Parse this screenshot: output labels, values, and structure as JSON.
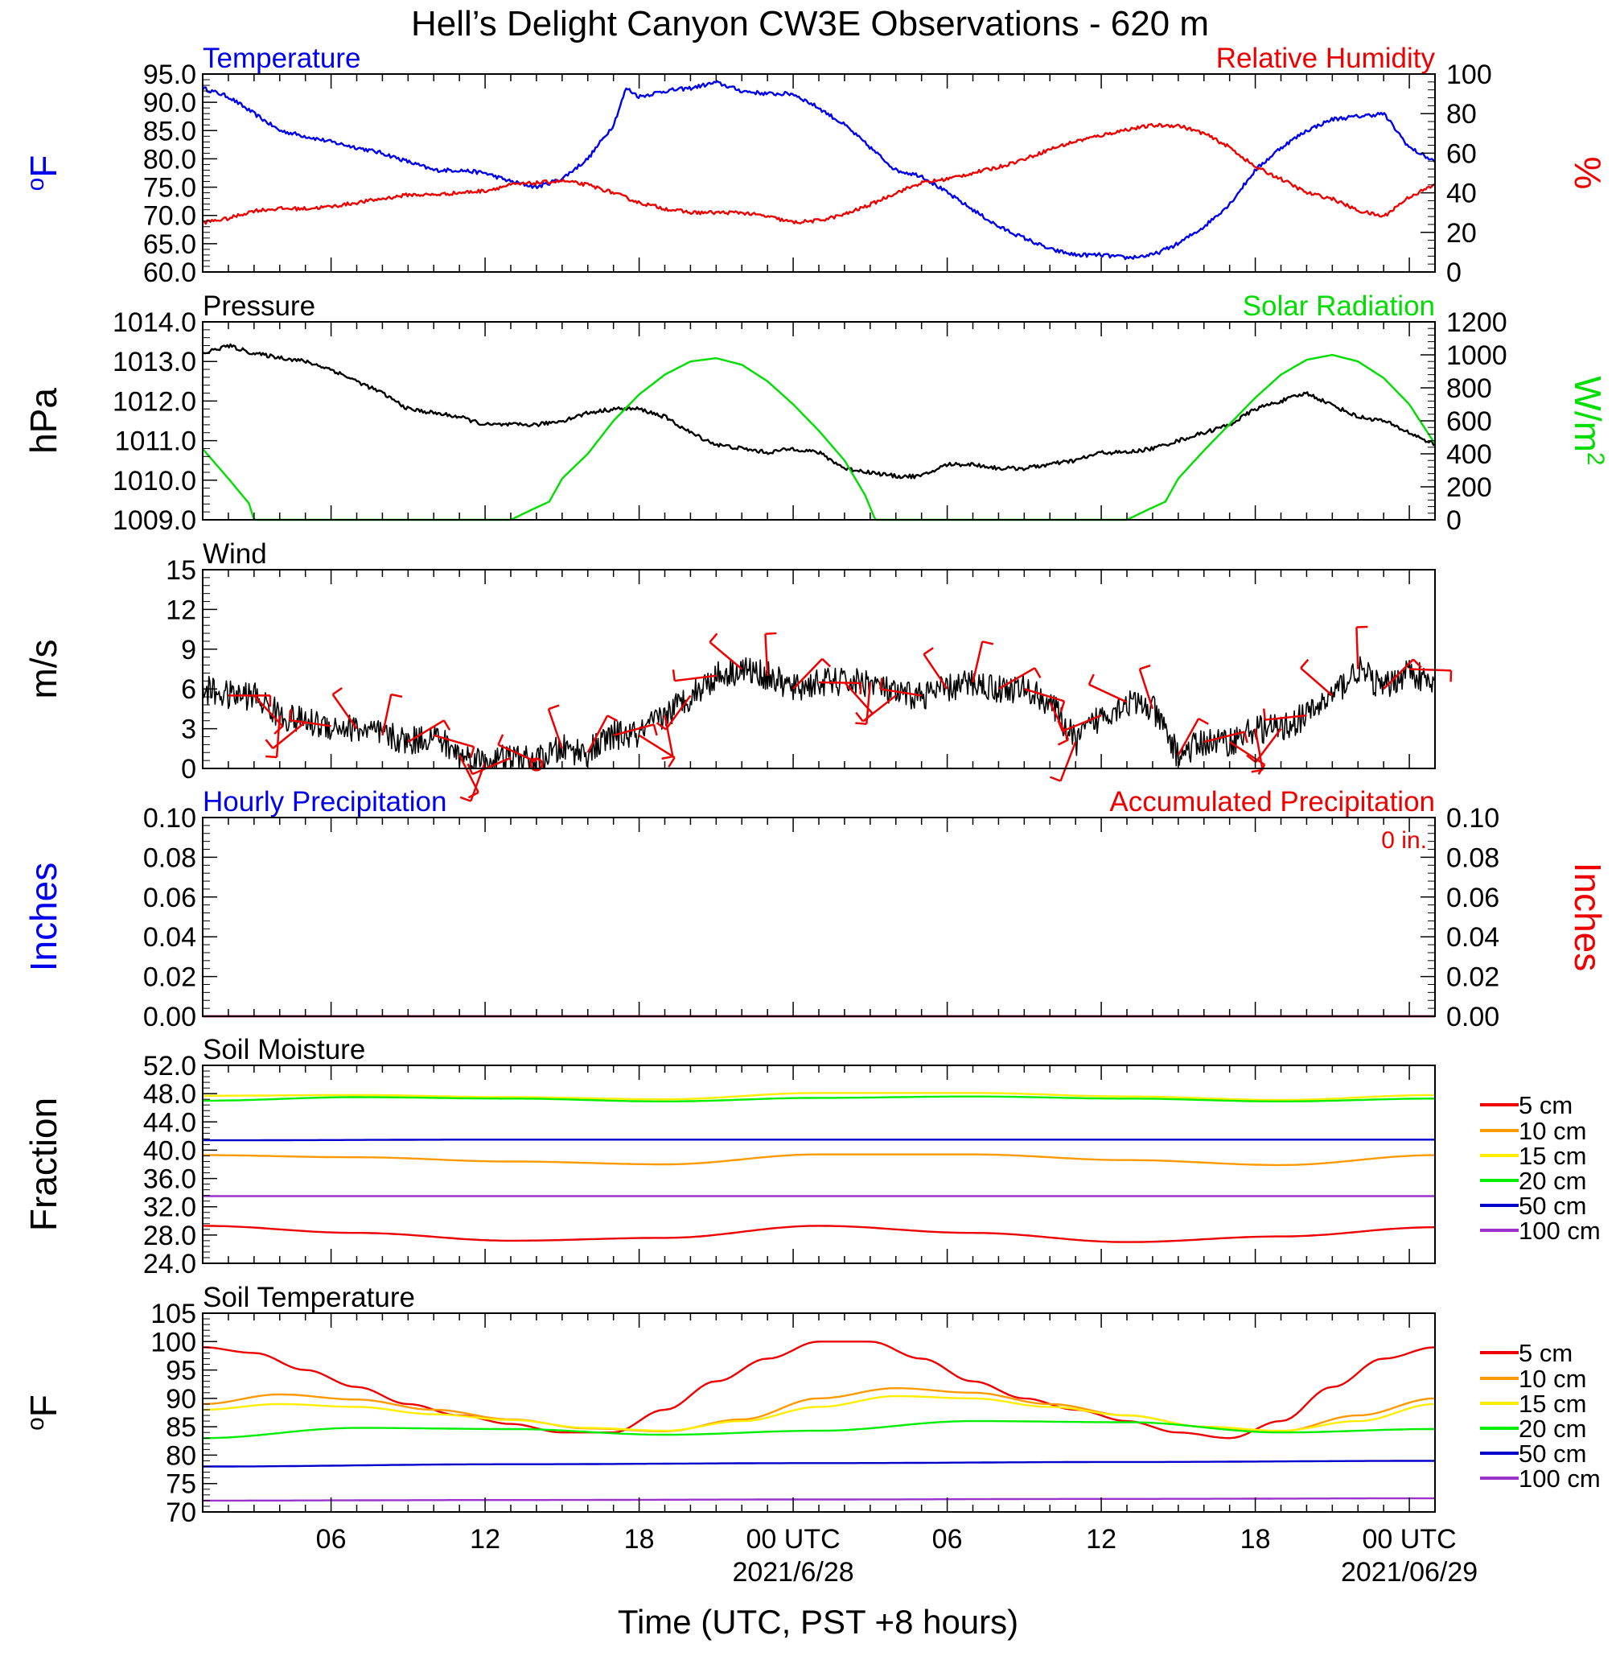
{
  "title": "Hell’s Delight Canyon CW3E Observations - 620 m",
  "x_axis": {
    "label": "Time (UTC, PST +8 hours)",
    "tick_labels": [
      "06",
      "12",
      "18",
      "00 UTC",
      "06",
      "12",
      "18",
      "00 UTC"
    ],
    "tick_hours": [
      6,
      12,
      18,
      24,
      30,
      36,
      42,
      48
    ],
    "date_labels": [
      "2021/6/28",
      "2021/06/29"
    ],
    "date_hours": [
      24,
      48
    ],
    "range_hours": [
      1,
      49
    ]
  },
  "colors": {
    "temperature": "#0000ee",
    "humidity": "#ee0000",
    "pressure": "#000000",
    "solar": "#00dd00",
    "wind": "#000000",
    "barbs": "#ee0000",
    "precip_hourly": "#0000ee",
    "precip_accum": "#ee0000",
    "depth_5cm": "#ee0000",
    "depth_10cm": "#ff9900",
    "depth_15cm": "#ffee00",
    "depth_20cm": "#00ee00",
    "depth_50cm": "#0000cc",
    "depth_100cm": "#9933cc"
  },
  "chart_data": [
    {
      "type": "line",
      "panel_title_left": "Temperature",
      "panel_title_right": "Relative Humidity",
      "left_axis": {
        "label": "oF",
        "ylim": [
          60,
          95
        ],
        "ticks": [
          "95.0",
          "90.0",
          "85.0",
          "80.0",
          "75.0",
          "70.0",
          "65.0",
          "60.0"
        ]
      },
      "right_axis": {
        "label": "%",
        "ylim": [
          0,
          100
        ],
        "ticks": [
          "100",
          "80",
          "60",
          "40",
          "20",
          "0"
        ]
      },
      "series": [
        {
          "name": "Temperature",
          "axis": "left",
          "color": "#0000ee",
          "x": [
            1,
            2,
            3,
            4,
            5,
            6,
            7,
            8,
            9,
            10,
            11,
            12,
            13,
            14,
            15,
            16,
            17,
            17.5,
            18,
            19,
            20,
            21,
            22,
            23,
            24,
            25,
            26,
            27,
            28,
            29,
            30,
            31,
            32,
            33,
            34,
            35,
            36,
            37,
            38,
            39,
            40,
            41,
            42,
            43,
            44,
            45,
            46,
            47,
            48,
            49
          ],
          "y": [
            92.5,
            91,
            88,
            85,
            84,
            83,
            82,
            81,
            79.5,
            78,
            78,
            77.5,
            76,
            75,
            76.5,
            80,
            86,
            92.5,
            91,
            92,
            92.5,
            93.5,
            92,
            91.5,
            91.5,
            89,
            86,
            82,
            78,
            77,
            74,
            71,
            68,
            66,
            64,
            63,
            63,
            62.5,
            63,
            65,
            68,
            72,
            78,
            82,
            85,
            87,
            87.5,
            88,
            82,
            79.5
          ]
        },
        {
          "name": "Relative Humidity",
          "axis": "right",
          "color": "#ee0000",
          "x": [
            1,
            2,
            3,
            4,
            5,
            6,
            7,
            8,
            9,
            10,
            11,
            12,
            13,
            14,
            15,
            16,
            17,
            18,
            19,
            20,
            21,
            22,
            23,
            24,
            25,
            26,
            27,
            28,
            29,
            30,
            31,
            32,
            33,
            34,
            35,
            36,
            37,
            38,
            39,
            40,
            41,
            42,
            43,
            44,
            45,
            46,
            47,
            48,
            49
          ],
          "y": [
            25,
            27,
            31,
            32,
            32,
            33,
            35,
            37,
            39,
            39,
            40,
            41,
            44,
            45,
            46,
            44,
            40,
            35,
            32,
            30,
            30,
            30,
            28,
            25,
            26,
            29,
            34,
            40,
            45,
            47,
            50,
            53,
            57,
            62,
            66,
            69,
            72,
            74,
            74,
            70,
            63,
            53,
            47,
            40,
            37,
            31,
            28,
            38,
            44
          ]
        }
      ]
    },
    {
      "type": "line",
      "panel_title_left": "Pressure",
      "panel_title_right": "Solar Radiation",
      "left_axis": {
        "label": "hPa",
        "ylim": [
          1009,
          1014
        ],
        "ticks": [
          "1014.0",
          "1013.0",
          "1012.0",
          "1011.0",
          "1010.0",
          "1009.0"
        ]
      },
      "right_axis": {
        "label": "W/m2",
        "ylim": [
          0,
          1200
        ],
        "ticks": [
          "1200",
          "1000",
          "800",
          "600",
          "400",
          "200",
          "0"
        ]
      },
      "series": [
        {
          "name": "Pressure",
          "axis": "left",
          "color": "#000000",
          "x": [
            1,
            2,
            3,
            4,
            5,
            6,
            7,
            8,
            9,
            10,
            11,
            12,
            13,
            14,
            15,
            16,
            17,
            18,
            19,
            20,
            21,
            22,
            23,
            24,
            25,
            26,
            27,
            28,
            29,
            30,
            31,
            32,
            33,
            34,
            35,
            36,
            37,
            38,
            39,
            40,
            41,
            42,
            43,
            44,
            45,
            46,
            47,
            48,
            49
          ],
          "y": [
            1013.2,
            1013.4,
            1013.2,
            1013.1,
            1013.0,
            1012.8,
            1012.5,
            1012.2,
            1011.8,
            1011.7,
            1011.6,
            1011.4,
            1011.4,
            1011.4,
            1011.5,
            1011.7,
            1011.8,
            1011.8,
            1011.6,
            1011.2,
            1010.9,
            1010.8,
            1010.7,
            1010.8,
            1010.7,
            1010.3,
            1010.2,
            1010.1,
            1010.1,
            1010.4,
            1010.4,
            1010.3,
            1010.3,
            1010.4,
            1010.5,
            1010.7,
            1010.7,
            1010.8,
            1011.0,
            1011.2,
            1011.4,
            1011.8,
            1012.0,
            1012.2,
            1011.9,
            1011.6,
            1011.5,
            1011.2,
            1010.9
          ]
        },
        {
          "name": "Solar Radiation",
          "axis": "right",
          "color": "#00dd00",
          "x": [
            1,
            2,
            2.8,
            3,
            4,
            8,
            12,
            13,
            13.8,
            14.5,
            15,
            16,
            17,
            18,
            19,
            20,
            21,
            22,
            23,
            24,
            25,
            26,
            26.8,
            27.2,
            28,
            30,
            33,
            36,
            37,
            37.8,
            38.5,
            39,
            40,
            41,
            42,
            43,
            44,
            45,
            46,
            47,
            48,
            49
          ],
          "y": [
            430,
            250,
            100,
            0,
            0,
            0,
            0,
            0,
            60,
            110,
            250,
            400,
            600,
            760,
            880,
            960,
            980,
            940,
            840,
            700,
            540,
            360,
            150,
            0,
            0,
            0,
            0,
            0,
            0,
            60,
            110,
            250,
            420,
            580,
            740,
            880,
            970,
            1000,
            960,
            860,
            700,
            460
          ]
        }
      ]
    },
    {
      "type": "line",
      "panel_title_left": "Wind",
      "left_axis": {
        "label": "m/s",
        "ylim": [
          0,
          15
        ],
        "ticks": [
          "15",
          "12",
          "9",
          "6",
          "3",
          "0"
        ]
      },
      "series": [
        {
          "name": "Wind",
          "axis": "left",
          "color": "#000000",
          "x": [
            1,
            2,
            3,
            4,
            5,
            6,
            7,
            8,
            9,
            10,
            11,
            12,
            13,
            14,
            15,
            16,
            17,
            18,
            19,
            20,
            21,
            22,
            23,
            24,
            25,
            26,
            27,
            28,
            29,
            30,
            31,
            32,
            33,
            34,
            35,
            36,
            37,
            38,
            39,
            40,
            41,
            42,
            43,
            44,
            45,
            46,
            47,
            48,
            49
          ],
          "y": [
            6,
            5.5,
            5.5,
            4,
            3.5,
            3.2,
            3,
            2.5,
            2,
            2.5,
            1,
            0.5,
            0.8,
            0.5,
            1.5,
            1.2,
            2.5,
            2.5,
            4,
            5.5,
            7,
            7.5,
            7,
            6,
            6.5,
            6.5,
            6.5,
            5.5,
            5.5,
            6,
            6.5,
            6,
            6,
            5,
            2,
            4,
            5,
            4.5,
            1,
            2,
            2,
            3,
            3,
            4,
            5.5,
            7.5,
            6,
            7.5,
            6
          ]
        }
      ],
      "barbs_hours": [
        2,
        3,
        4,
        5,
        6,
        7,
        8,
        9,
        10,
        11,
        12,
        13,
        14,
        15,
        16,
        17,
        18,
        19,
        20,
        21,
        22,
        23,
        24,
        25,
        26,
        27,
        28,
        29,
        30,
        31,
        32,
        33,
        34,
        35,
        36,
        37,
        38,
        39,
        40,
        41,
        42,
        43,
        44,
        45,
        46,
        47,
        48
      ],
      "calm_marker_hour": 14
    },
    {
      "type": "line",
      "panel_title_left": "Hourly Precipitation",
      "panel_title_right": "Accumulated Precipitation",
      "annotation": "0 in.",
      "left_axis": {
        "label": "Inches",
        "ylim": [
          0,
          0.1
        ],
        "ticks": [
          "0.10",
          "0.08",
          "0.06",
          "0.04",
          "0.02",
          "0.00"
        ]
      },
      "right_axis": {
        "label": "Inches",
        "ylim": [
          0,
          0.1
        ],
        "ticks": [
          "0.10",
          "0.08",
          "0.06",
          "0.04",
          "0.02",
          "0.00"
        ]
      },
      "series": [
        {
          "name": "Hourly Precipitation",
          "axis": "left",
          "color": "#0000ee",
          "x": [
            1,
            49
          ],
          "y": [
            0,
            0
          ]
        },
        {
          "name": "Accumulated Precipitation",
          "axis": "right",
          "color": "#ee0000",
          "x": [
            1,
            49
          ],
          "y": [
            0,
            0
          ]
        }
      ]
    },
    {
      "type": "line",
      "panel_title_left": "Soil Moisture",
      "left_axis": {
        "label": "Fraction",
        "ylim": [
          24,
          52
        ],
        "ticks": [
          "52.0",
          "48.0",
          "44.0",
          "40.0",
          "36.0",
          "32.0",
          "28.0",
          "24.0"
        ]
      },
      "series": [
        {
          "name": "5 cm",
          "color": "#ee0000",
          "x": [
            1,
            7,
            13,
            19,
            25,
            31,
            37,
            43,
            49
          ],
          "y": [
            29.3,
            28.3,
            27.2,
            27.6,
            29.3,
            28.3,
            27.0,
            27.8,
            29.1
          ]
        },
        {
          "name": "10 cm",
          "color": "#ff9900",
          "x": [
            1,
            7,
            13,
            19,
            25,
            31,
            37,
            43,
            49
          ],
          "y": [
            39.3,
            39.0,
            38.4,
            38.0,
            39.4,
            39.4,
            38.6,
            37.9,
            39.3
          ]
        },
        {
          "name": "15 cm",
          "color": "#ffee00",
          "x": [
            1,
            7,
            13,
            19,
            25,
            31,
            37,
            43,
            49
          ],
          "y": [
            47.7,
            47.8,
            47.5,
            47.2,
            48.1,
            48.1,
            47.6,
            47.1,
            47.8
          ]
        },
        {
          "name": "20 cm",
          "color": "#00ee00",
          "x": [
            1,
            7,
            13,
            19,
            25,
            31,
            37,
            43,
            49
          ],
          "y": [
            47.0,
            47.5,
            47.3,
            46.9,
            47.4,
            47.6,
            47.3,
            46.9,
            47.3
          ]
        },
        {
          "name": "50 cm",
          "color": "#0000cc",
          "x": [
            1,
            13,
            25,
            37,
            49
          ],
          "y": [
            41.4,
            41.5,
            41.5,
            41.5,
            41.5
          ]
        },
        {
          "name": "100 cm",
          "color": "#9933cc",
          "x": [
            1,
            13,
            25,
            37,
            49
          ],
          "y": [
            33.5,
            33.5,
            33.5,
            33.5,
            33.5
          ]
        }
      ]
    },
    {
      "type": "line",
      "panel_title_left": "Soil Temperature",
      "left_axis": {
        "label": "oF",
        "ylim": [
          70,
          105
        ],
        "ticks": [
          "105",
          "100",
          "95",
          "90",
          "85",
          "80",
          "75",
          "70"
        ]
      },
      "series": [
        {
          "name": "5 cm",
          "color": "#ee0000",
          "x": [
            1,
            3,
            5,
            7,
            9,
            11,
            13,
            15,
            17,
            19,
            21,
            23,
            25,
            27,
            29,
            31,
            33,
            35,
            37,
            39,
            41,
            43,
            45,
            47,
            49
          ],
          "y": [
            99,
            98,
            95,
            92,
            89,
            87,
            85.5,
            84,
            84,
            88,
            93,
            97,
            100,
            100,
            97,
            93,
            90,
            88,
            86,
            84,
            83,
            86,
            92,
            97,
            99
          ]
        },
        {
          "name": "10 cm",
          "color": "#ff9900",
          "x": [
            1,
            4,
            7,
            10,
            13,
            16,
            19,
            22,
            25,
            28,
            31,
            34,
            37,
            40,
            43,
            46,
            49
          ],
          "y": [
            89,
            90.7,
            89.8,
            88,
            86.3,
            84.7,
            84.2,
            86.3,
            90,
            91.8,
            91,
            89,
            87,
            85,
            84.2,
            87,
            90
          ]
        },
        {
          "name": "15 cm",
          "color": "#ffee00",
          "x": [
            1,
            4,
            7,
            10,
            13,
            16,
            19,
            22,
            25,
            28,
            31,
            34,
            37,
            40,
            43,
            46,
            49
          ],
          "y": [
            88,
            89,
            88.5,
            87.2,
            86.2,
            84.8,
            84.3,
            86,
            88.5,
            90.4,
            90,
            88.5,
            87,
            85,
            84.3,
            86,
            89
          ]
        },
        {
          "name": "20 cm",
          "color": "#00ee00",
          "x": [
            1,
            7,
            13,
            19,
            25,
            31,
            37,
            43,
            49
          ],
          "y": [
            83,
            84.8,
            84.6,
            83.6,
            84.3,
            86,
            85.8,
            84,
            84.6
          ]
        },
        {
          "name": "50 cm",
          "color": "#0000cc",
          "x": [
            1,
            13,
            25,
            37,
            49
          ],
          "y": [
            78,
            78.4,
            78.6,
            78.8,
            79
          ]
        },
        {
          "name": "100 cm",
          "color": "#9933cc",
          "x": [
            1,
            13,
            25,
            37,
            49
          ],
          "y": [
            72,
            72.1,
            72.2,
            72.3,
            72.4
          ]
        }
      ]
    }
  ]
}
